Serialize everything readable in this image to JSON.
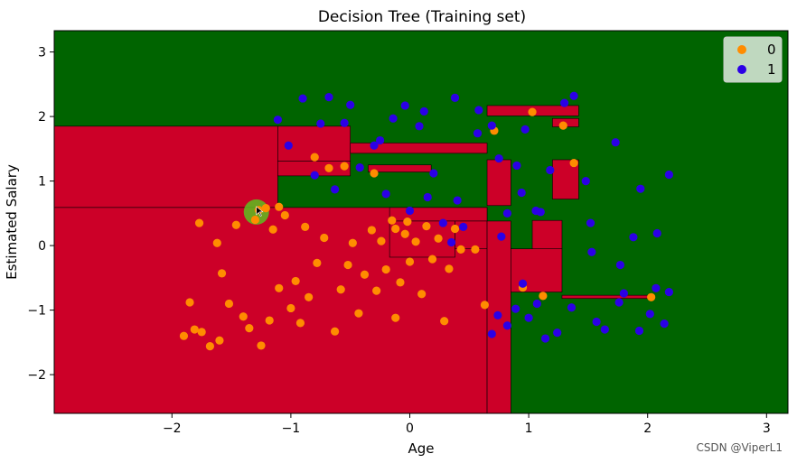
{
  "watermark": "CSDN @ViperL1",
  "cursor_highlight_color": "#5cbf1f",
  "chart_data": {
    "type": "scatter",
    "title": "Decision Tree (Training set)",
    "xlabel": "Age",
    "ylabel": "Estimated Salary",
    "xlim": [
      -2.99,
      3.18
    ],
    "ylim": [
      -2.6,
      3.33
    ],
    "xticks": [
      -2,
      -1,
      0,
      1,
      2,
      3
    ],
    "yticks": [
      -2,
      -1,
      0,
      1,
      2,
      3
    ],
    "xtick_labels": [
      "−2",
      "−1",
      "0",
      "1",
      "2",
      "3"
    ],
    "ytick_labels": [
      "−2",
      "−1",
      "0",
      "1",
      "2",
      "3"
    ],
    "grid": false,
    "legend_position": "top-right",
    "background_region_color": "#006400",
    "regions": {
      "class": "0",
      "color": "#cc0028",
      "rects": [
        [
          -2.99,
          0.59,
          -1.11,
          1.85
        ],
        [
          -1.11,
          1.31,
          -0.5,
          1.85
        ],
        [
          -0.5,
          1.43,
          0.65,
          1.59
        ],
        [
          -2.99,
          -2.6,
          0.65,
          0.59
        ],
        [
          -1.11,
          1.08,
          -0.5,
          1.31
        ],
        [
          -0.35,
          1.14,
          0.18,
          1.25
        ],
        [
          -0.17,
          0.38,
          0.65,
          0.59
        ],
        [
          -0.17,
          -0.18,
          0.38,
          0.38
        ],
        [
          0.38,
          -0.05,
          0.65,
          0.38
        ],
        [
          0.65,
          -2.6,
          0.85,
          0.38
        ],
        [
          0.65,
          0.62,
          0.85,
          1.33
        ],
        [
          0.85,
          -0.72,
          1.28,
          -0.05
        ],
        [
          1.03,
          -0.05,
          1.28,
          0.39
        ],
        [
          1.28,
          -0.82,
          2.05,
          -0.77
        ],
        [
          0.65,
          2.01,
          1.42,
          2.17
        ],
        [
          1.2,
          1.84,
          1.42,
          1.97
        ],
        [
          1.2,
          0.72,
          1.42,
          1.33
        ]
      ]
    },
    "series": [
      {
        "name": "0",
        "color": "#ff8c00",
        "points": [
          [
            -1.9,
            -1.4
          ],
          [
            -1.85,
            -0.88
          ],
          [
            -1.81,
            -1.3
          ],
          [
            -1.77,
            0.35
          ],
          [
            -1.75,
            -1.34
          ],
          [
            -1.68,
            -1.56
          ],
          [
            -1.62,
            0.04
          ],
          [
            -1.6,
            -1.47
          ],
          [
            -1.58,
            -0.43
          ],
          [
            -1.52,
            -0.9
          ],
          [
            -1.46,
            0.32
          ],
          [
            -1.4,
            -1.1
          ],
          [
            -1.35,
            -1.28
          ],
          [
            -1.3,
            0.4
          ],
          [
            -1.25,
            -1.55
          ],
          [
            -1.21,
            0.58
          ],
          [
            -1.18,
            -1.16
          ],
          [
            -1.15,
            0.25
          ],
          [
            -1.1,
            -0.66
          ],
          [
            -1.05,
            0.47
          ],
          [
            -1.0,
            -0.97
          ],
          [
            -0.96,
            -0.55
          ],
          [
            -0.92,
            -1.2
          ],
          [
            -0.88,
            0.29
          ],
          [
            -0.85,
            -0.8
          ],
          [
            -0.8,
            1.37
          ],
          [
            -0.78,
            -0.27
          ],
          [
            -0.72,
            0.12
          ],
          [
            -0.68,
            1.2
          ],
          [
            -0.63,
            -1.33
          ],
          [
            -0.58,
            -0.68
          ],
          [
            -0.52,
            -0.3
          ],
          [
            -0.48,
            0.04
          ],
          [
            -0.43,
            -1.05
          ],
          [
            -0.38,
            -0.45
          ],
          [
            -0.32,
            0.24
          ],
          [
            -0.28,
            -0.7
          ],
          [
            -0.24,
            0.07
          ],
          [
            -0.2,
            -0.37
          ],
          [
            -0.15,
            0.39
          ],
          [
            -0.12,
            -1.12
          ],
          [
            -0.08,
            -0.57
          ],
          [
            -0.04,
            0.18
          ],
          [
            0.0,
            -0.25
          ],
          [
            0.05,
            0.06
          ],
          [
            0.1,
            -0.75
          ],
          [
            0.14,
            0.3
          ],
          [
            0.19,
            -0.21
          ],
          [
            0.24,
            0.11
          ],
          [
            0.29,
            -1.17
          ],
          [
            0.33,
            -0.36
          ],
          [
            0.38,
            0.26
          ],
          [
            0.43,
            -0.06
          ],
          [
            0.71,
            1.78
          ],
          [
            0.95,
            -0.65
          ],
          [
            1.03,
            2.07
          ],
          [
            1.12,
            -0.78
          ],
          [
            1.29,
            1.86
          ],
          [
            1.38,
            1.28
          ],
          [
            2.03,
            -0.8
          ],
          [
            -1.27,
            0.55
          ],
          [
            -1.1,
            0.6
          ],
          [
            -0.55,
            1.23
          ],
          [
            -0.3,
            1.12
          ],
          [
            -0.12,
            0.26
          ],
          [
            -0.02,
            0.37
          ],
          [
            0.55,
            -0.06
          ],
          [
            0.63,
            -0.92
          ]
        ]
      },
      {
        "name": "1",
        "color": "#2b00e6",
        "points": [
          [
            -1.11,
            1.95
          ],
          [
            -1.02,
            1.55
          ],
          [
            -0.9,
            2.28
          ],
          [
            -0.75,
            1.89
          ],
          [
            -0.68,
            2.3
          ],
          [
            -0.55,
            1.9
          ],
          [
            -0.5,
            2.18
          ],
          [
            -0.42,
            1.21
          ],
          [
            -0.3,
            1.55
          ],
          [
            -0.25,
            1.63
          ],
          [
            -0.14,
            1.97
          ],
          [
            -0.04,
            2.17
          ],
          [
            0.0,
            0.54
          ],
          [
            0.08,
            1.85
          ],
          [
            0.12,
            2.08
          ],
          [
            0.2,
            1.12
          ],
          [
            0.28,
            0.35
          ],
          [
            0.38,
            2.29
          ],
          [
            0.45,
            0.29
          ],
          [
            0.58,
            2.1
          ],
          [
            0.69,
            1.86
          ],
          [
            0.75,
            1.35
          ],
          [
            0.82,
            0.5
          ],
          [
            0.9,
            1.24
          ],
          [
            0.97,
            1.8
          ],
          [
            1.06,
            0.54
          ],
          [
            1.18,
            1.17
          ],
          [
            1.3,
            2.21
          ],
          [
            1.38,
            2.32
          ],
          [
            1.48,
            1.0
          ],
          [
            1.53,
            -0.1
          ],
          [
            1.64,
            -1.3
          ],
          [
            1.73,
            1.6
          ],
          [
            1.77,
            -0.3
          ],
          [
            1.88,
            0.13
          ],
          [
            1.94,
            0.88
          ],
          [
            2.02,
            -1.06
          ],
          [
            2.08,
            0.19
          ],
          [
            2.14,
            -1.21
          ],
          [
            2.18,
            -0.72
          ],
          [
            0.69,
            -1.37
          ],
          [
            0.74,
            -1.08
          ],
          [
            0.82,
            -1.24
          ],
          [
            0.89,
            -0.98
          ],
          [
            0.95,
            -0.59
          ],
          [
            1.0,
            -1.12
          ],
          [
            1.07,
            -0.9
          ],
          [
            1.14,
            -1.44
          ],
          [
            1.24,
            -1.35
          ],
          [
            1.36,
            -0.96
          ],
          [
            1.57,
            -1.18
          ],
          [
            1.76,
            -0.88
          ],
          [
            1.93,
            -1.32
          ],
          [
            2.07,
            -0.66
          ],
          [
            0.77,
            0.14
          ],
          [
            0.94,
            0.82
          ],
          [
            1.1,
            0.52
          ],
          [
            0.57,
            1.74
          ],
          [
            0.35,
            0.05
          ],
          [
            -0.8,
            1.09
          ],
          [
            -0.63,
            0.87
          ],
          [
            -0.2,
            0.8
          ],
          [
            0.15,
            0.75
          ],
          [
            0.4,
            0.7
          ],
          [
            1.52,
            0.35
          ],
          [
            1.8,
            -0.74
          ],
          [
            2.18,
            1.1
          ]
        ]
      }
    ]
  }
}
